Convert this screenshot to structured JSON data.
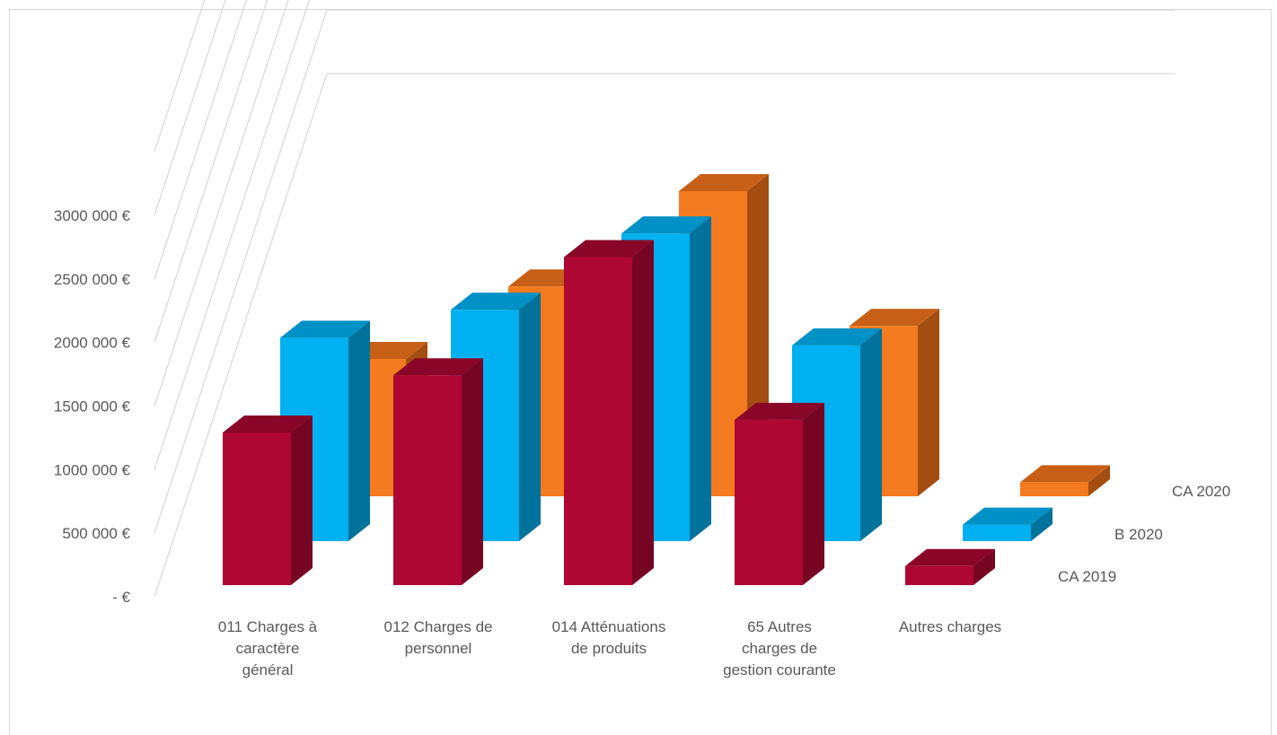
{
  "chart_data": {
    "type": "bar",
    "title": "",
    "xlabel": "",
    "ylabel": "",
    "ylim": [
      0,
      3500000
    ],
    "yticks": [
      {
        "value": 0,
        "label": "-   €"
      },
      {
        "value": 500000,
        "label": "500 000 €"
      },
      {
        "value": 1000000,
        "label": "1000 000 €"
      },
      {
        "value": 1500000,
        "label": "1500 000 €"
      },
      {
        "value": 2000000,
        "label": "2000 000 €"
      },
      {
        "value": 2500000,
        "label": "2500 000 €"
      },
      {
        "value": 3000000,
        "label": "3000 000 €"
      }
    ],
    "categories": [
      [
        "011 Charges à",
        "caractère",
        "général"
      ],
      [
        "012 Charges de",
        "personnel"
      ],
      [
        "014 Atténuations",
        "de produits"
      ],
      [
        "65 Autres",
        "charges de",
        "gestion courante"
      ],
      [
        "Autres charges"
      ]
    ],
    "series": [
      {
        "name": "CA 2019",
        "values": [
          1200000,
          1650000,
          2580000,
          1300000,
          150000
        ]
      },
      {
        "name": "B 2020",
        "values": [
          1600000,
          1820000,
          2420000,
          1540000,
          130000
        ]
      },
      {
        "name": "CA 2020",
        "values": [
          1080000,
          1650000,
          2400000,
          1340000,
          110000
        ]
      }
    ],
    "grid": true,
    "legend": "series labels on depth axis (right)",
    "colors": {
      "CA 2019": {
        "front": "#ae0733",
        "side": "#760524",
        "top": "#8a0629"
      },
      "B 2020": {
        "front": "#00b0f0",
        "side": "#00729c",
        "top": "#0091c6"
      },
      "CA 2020": {
        "front": "#f47a20",
        "side": "#a34e10",
        "top": "#c76016"
      },
      "grid": "#d9d9d9",
      "text": "#595959"
    }
  }
}
